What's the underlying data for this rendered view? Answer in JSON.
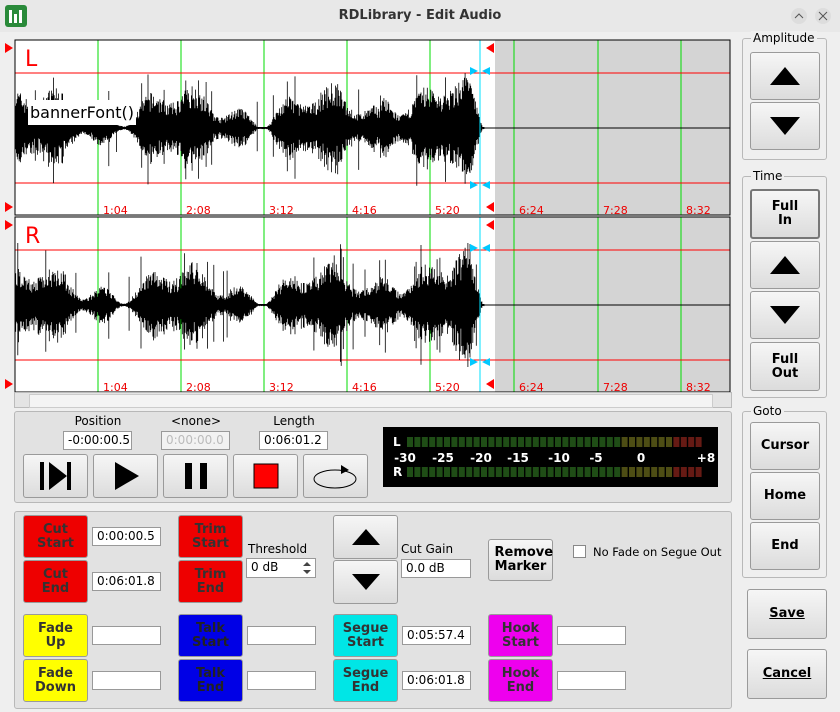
{
  "window": {
    "title": "RDLibrary - Edit Audio"
  },
  "waveform": {
    "channels": [
      "L",
      "R"
    ],
    "overlay_text": "bannerFont()",
    "time_labels": [
      "1:04",
      "2:08",
      "3:12",
      "4:16",
      "5:20",
      "6:24",
      "7:28",
      "8:32"
    ]
  },
  "amplitude": {
    "label": "Amplitude"
  },
  "time": {
    "label": "Time",
    "full_in": "Full In",
    "full_out": "Full Out"
  },
  "goto": {
    "label": "Goto",
    "cursor": "Cursor",
    "home": "Home",
    "end": "End"
  },
  "dialog": {
    "save": "Save",
    "cancel": "Cancel"
  },
  "transport": {
    "position_label": "Position",
    "position": "-0:00:00.5",
    "marker_label": "<none>",
    "marker_value": "0:00:00.0",
    "length_label": "Length",
    "length": "0:06:01.2"
  },
  "meter": {
    "channels": [
      "L",
      "R"
    ],
    "scale": [
      "-30",
      "-25",
      "-20",
      "-15",
      "-10",
      "-5",
      "0",
      "+8"
    ]
  },
  "markers": {
    "cut_start": "Cut Start",
    "cut_start_value": "0:00:00.5",
    "cut_end": "Cut End",
    "cut_end_value": "0:06:01.8",
    "trim_start": "Trim Start",
    "trim_end": "Trim End",
    "threshold_label": "Threshold",
    "threshold": "0 dB",
    "cut_gain_label": "Cut Gain",
    "cut_gain": "0.0 dB",
    "remove_marker": "Remove Marker",
    "no_fade": "No Fade on Segue Out",
    "fade_up": "Fade Up",
    "fade_down": "Fade Down",
    "talk_start": "Talk Start",
    "talk_end": "Talk End",
    "segue_start": "Segue Start",
    "segue_start_value": "0:05:57.4",
    "segue_end": "Segue End",
    "segue_end_value": "0:06:01.8",
    "hook_start": "Hook Start",
    "hook_end": "Hook End"
  }
}
